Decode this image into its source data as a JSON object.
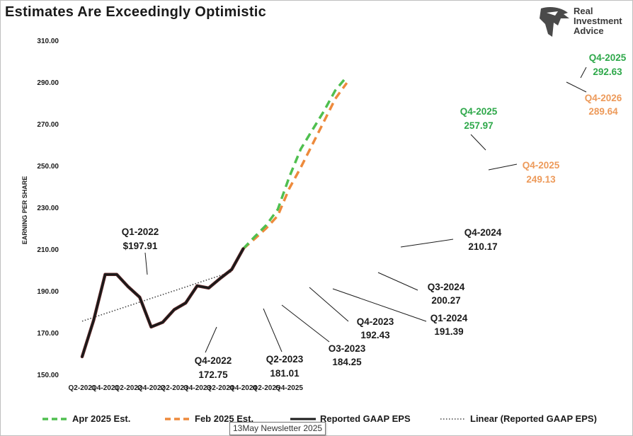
{
  "chart_data": {
    "type": "line",
    "title": "Estimates Are Exceedingly Optimistic",
    "ylabel": "EARNING PER SHARE",
    "ylim": [
      150,
      310
    ],
    "yticks": [
      "150.00",
      "170.00",
      "190.00",
      "210.00",
      "230.00",
      "250.00",
      "270.00",
      "290.00",
      "310.00"
    ],
    "x_labels": [
      "Q2-2021",
      "Q4-2021",
      "Q2-2022",
      "Q4-2022",
      "Q2-2023",
      "Q4-2023",
      "Q2-2024",
      "Q4-2024",
      "Q2-2025",
      "Q4-2025"
    ],
    "grid": false,
    "legend_position": "bottom",
    "series": [
      {
        "name": "Apr 2025 Est.",
        "color": "#4fbf4f",
        "style": "dashed",
        "x": [
          "Q4-2024",
          "Q1-2025",
          "Q2-2025",
          "Q3-2025",
          "Q4-2025",
          "Q1-2026",
          "Q2-2026",
          "Q3-2026",
          "Q4-2026",
          "Q1-2027"
        ],
        "values": [
          210.17,
          216,
          221.5,
          229,
          244.5,
          257.97,
          267,
          276,
          286,
          292.63
        ]
      },
      {
        "name": "Feb 2025 Est.",
        "color": "#ed8a3c",
        "style": "dashed",
        "x": [
          "Q4-2024",
          "Q1-2025",
          "Q2-2025",
          "Q3-2025",
          "Q4-2025",
          "Q1-2026",
          "Q2-2026",
          "Q3-2026",
          "Q4-2026",
          "Q1-2027"
        ],
        "values": [
          210.17,
          215,
          220,
          226,
          239,
          249.13,
          260,
          271,
          282,
          289.64
        ]
      },
      {
        "name": "Reported GAAP EPS",
        "color": "#1a1a1a",
        "style": "solid",
        "x": [
          "Q2-2021",
          "Q3-2021",
          "Q4-2021",
          "Q1-2022",
          "Q2-2022",
          "Q3-2022",
          "Q4-2022",
          "Q1-2023",
          "Q2-2023",
          "Q3-2023",
          "Q4-2023",
          "Q1-2024",
          "Q2-2024",
          "Q3-2024",
          "Q4-2024"
        ],
        "values": [
          158.5,
          176,
          197.91,
          197.91,
          192,
          187,
          172.75,
          175,
          181.01,
          184.25,
          192.43,
          191.39,
          196,
          200.27,
          210.17
        ]
      },
      {
        "name": "Linear (Reported GAAP EPS)",
        "color": "#444444",
        "style": "dotted",
        "x": [
          "Q2-2021",
          "Q3-2024"
        ],
        "values": [
          175.5,
          199.2
        ]
      }
    ],
    "annotations": [
      {
        "label": "Q1-2022",
        "value": "$197.91"
      },
      {
        "label": "Q4-2022",
        "value": "172.75"
      },
      {
        "label": "Q2-2023",
        "value": "181.01"
      },
      {
        "label": "O3-2023",
        "value": "184.25"
      },
      {
        "label": "Q4-2023",
        "value": "192.43"
      },
      {
        "label": "Q1-2024",
        "value": "191.39"
      },
      {
        "label": "Q3-2024",
        "value": "200.27"
      },
      {
        "label": "Q4-2024",
        "value": "210.17"
      },
      {
        "label": "Q4-2025",
        "value": "257.97",
        "color": "#2ea84a"
      },
      {
        "label": "Q4-2025",
        "value": "249.13",
        "color": "#ed9a5a"
      },
      {
        "label": "Q4-2025",
        "value": "292.63",
        "color": "#2ea84a"
      },
      {
        "label": "Q4-2026",
        "value": "289.64",
        "color": "#ed9a5a"
      }
    ]
  },
  "logo": {
    "line1": "Real",
    "line2": "Investment",
    "line3": "Advice"
  },
  "tooltip": "13May Newsletter 2025"
}
